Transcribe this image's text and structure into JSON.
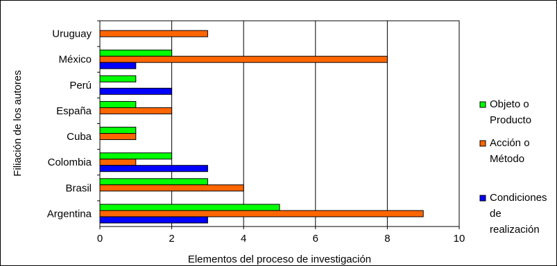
{
  "chart_data": {
    "type": "bar",
    "orientation": "horizontal",
    "categories": [
      "Uruguay",
      "México",
      "Perú",
      "España",
      "Cuba",
      "Colombia",
      "Brasil",
      "Argentina"
    ],
    "series": [
      {
        "name": "Objeto o Producto",
        "legend_lines": [
          "Objeto o",
          "Producto"
        ],
        "color": "#00ff00",
        "values": [
          0,
          2,
          1,
          1,
          1,
          2,
          3,
          5
        ]
      },
      {
        "name": "Acción o Método",
        "legend_lines": [
          "Acción o",
          "Método"
        ],
        "color": "#ff6600",
        "values": [
          3,
          8,
          0,
          2,
          1,
          1,
          4,
          9
        ]
      },
      {
        "name": "Condiciones de realización",
        "legend_lines": [
          "Condiciones",
          "de",
          "realización"
        ],
        "color": "#0000ff",
        "values": [
          0,
          1,
          2,
          0,
          0,
          3,
          0,
          3
        ]
      }
    ],
    "xlabel": "Elementos del proceso de investigación",
    "ylabel": "Filiación de los autores",
    "xlim": [
      0,
      10
    ],
    "xticks": [
      0,
      2,
      4,
      6,
      8,
      10
    ],
    "grid": "vertical",
    "legend_position": "right"
  }
}
